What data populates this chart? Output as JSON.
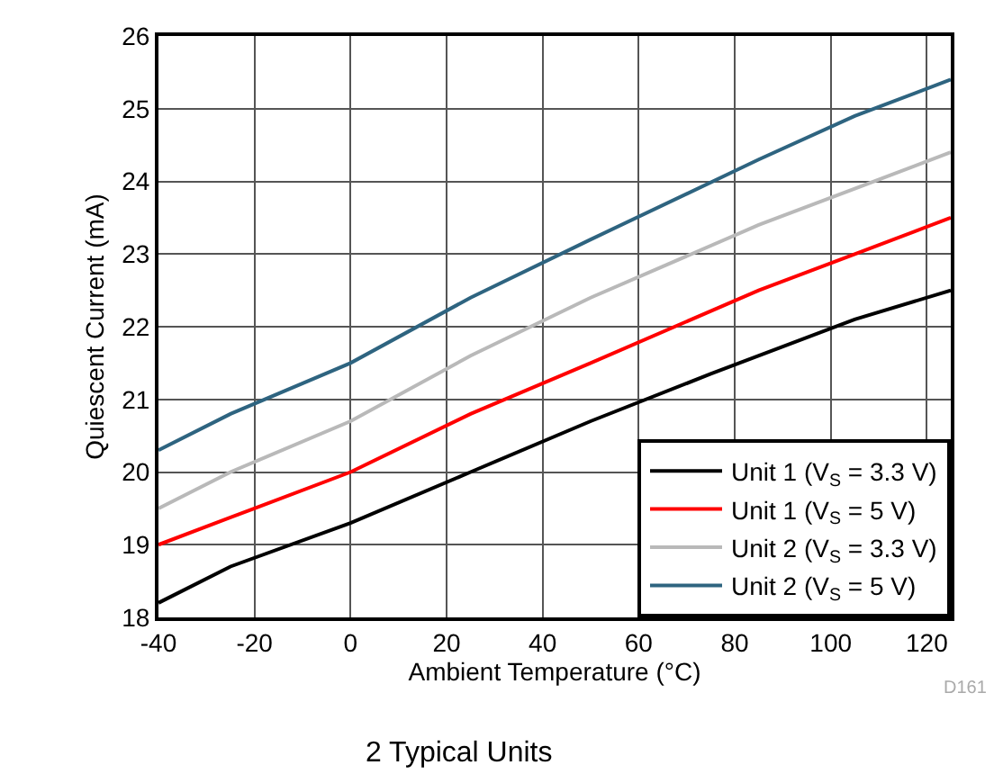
{
  "chart_data": {
    "type": "line",
    "xlabel": "Ambient Temperature (°C)",
    "ylabel": "Quiescent Current (mA)",
    "series": [
      {
        "name": "Unit 1 (V$_{S}$ = 3.3 V)",
        "color": "#000000",
        "x": [
          -40,
          -25,
          0,
          25,
          50,
          75,
          105,
          125
        ],
        "values": [
          18.2,
          18.7,
          19.3,
          20.0,
          20.7,
          21.35,
          22.1,
          22.5
        ]
      },
      {
        "name": "Unit 1 (V$_{S}$ = 5 V)",
        "color": "#ff0000",
        "x": [
          -40,
          -20,
          0,
          25,
          50,
          85,
          105,
          125
        ],
        "values": [
          19.0,
          19.5,
          20.0,
          20.8,
          21.5,
          22.5,
          23.0,
          23.5
        ]
      },
      {
        "name": "Unit 2 (V$_{S}$ = 3.3 V)",
        "color": "#b9b9b9",
        "x": [
          -40,
          -25,
          0,
          25,
          50,
          85,
          105,
          125
        ],
        "values": [
          19.5,
          20.0,
          20.7,
          21.6,
          22.4,
          23.4,
          23.9,
          24.4
        ]
      },
      {
        "name": "Unit 2 (V$_{S}$ = 5 V)",
        "color": "#2e6480",
        "x": [
          -40,
          -25,
          0,
          25,
          50,
          85,
          105,
          125
        ],
        "values": [
          20.3,
          20.8,
          21.5,
          22.4,
          23.2,
          24.3,
          24.9,
          25.4
        ]
      }
    ],
    "xlim": [
      -40,
      125
    ],
    "xticks": [
      -40,
      -20,
      0,
      20,
      40,
      60,
      80,
      100,
      120
    ],
    "ylim": [
      18,
      26
    ],
    "yticks": [
      18,
      19,
      20,
      21,
      22,
      23,
      24,
      25,
      26
    ],
    "grid": true,
    "legend": "bottom right",
    "marker": "none",
    "line_style": "solid",
    "annotations": [
      "D161",
      "2 Typical Units"
    ]
  }
}
